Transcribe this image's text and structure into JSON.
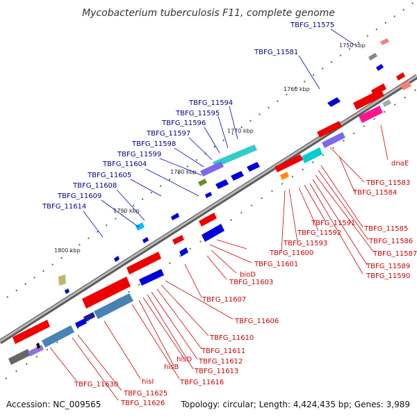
{
  "title": "Mycobacterium tuberculosis F11, complete genome",
  "footer": {
    "accession": "Accession: NC_009565",
    "summary": "Topology: circular; Length: 4,424,435 bp; Genes: 3,989"
  },
  "colors": {
    "forward_label": "#00008b",
    "reverse_label": "#cc0000",
    "forward_gene": "#0000dd",
    "reverse_gene": "#ee0000",
    "backbone": "#8c8c8c",
    "tick": "#2e7d32"
  },
  "kbp_markers": [
    "1750 kbp",
    "1760 kbp",
    "1770 kbp",
    "1780 kbp",
    "1790 kbp",
    "1800 kbp"
  ],
  "forward_labels": [
    "TBFG_11575",
    "TBFG_11581",
    "TBFG_11594",
    "TBFG_11595",
    "TBFG_11596",
    "TBFG_11597",
    "TBFG_11598",
    "TBFG_11599",
    "TBFG_11604",
    "TBFG_11605",
    "TBFG_11608",
    "TBFG_11609",
    "TBFG_11614"
  ],
  "reverse_labels": [
    "dnaE",
    "TBFG_11583",
    "TBFG_11584",
    "TBFG_11585",
    "TBFG_11586",
    "TBFG_11587",
    "TBFG_11589",
    "TBFG_11590",
    "TBFG_11591",
    "TBFG_11592",
    "TBFG_11593",
    "TBFG_11600",
    "TBFG_11601",
    "bioD",
    "TBFG_11603",
    "TBFG_11607",
    "TBFG_11606",
    "TBFG_11610",
    "TBFG_11611",
    "TBFG_11612",
    "TBFG_11613",
    "hisD",
    "hisB",
    "TBFG_11616",
    "hisI",
    "TBFG_11625",
    "TBFG_11626",
    "TBFG_11630"
  ]
}
